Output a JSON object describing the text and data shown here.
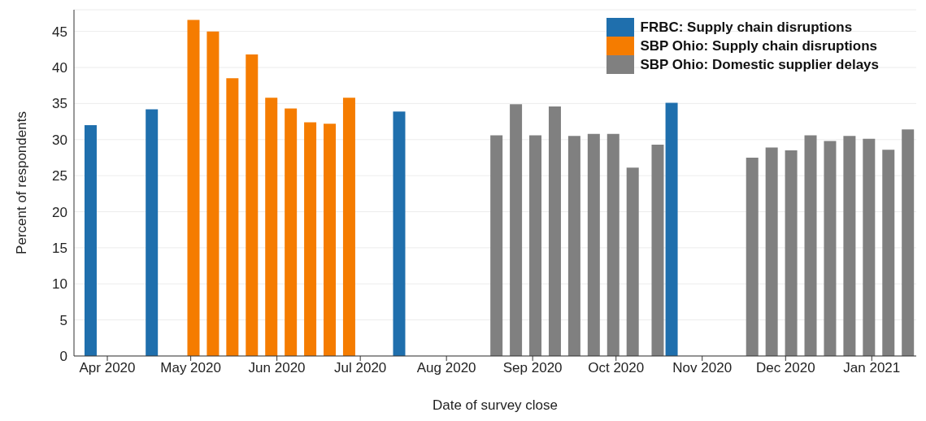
{
  "chart_data": {
    "type": "bar",
    "xlabel": "Date of survey close",
    "ylabel": "Percent of respondents",
    "xlim": [
      "2020-03-20",
      "2021-01-17"
    ],
    "ylim": [
      0,
      48
    ],
    "xticks": [
      {
        "value": "2020-04-01",
        "label": "Apr 2020"
      },
      {
        "value": "2020-05-01",
        "label": "May 2020"
      },
      {
        "value": "2020-06-01",
        "label": "Jun 2020"
      },
      {
        "value": "2020-07-01",
        "label": "Jul 2020"
      },
      {
        "value": "2020-08-01",
        "label": "Aug 2020"
      },
      {
        "value": "2020-09-01",
        "label": "Sep 2020"
      },
      {
        "value": "2020-10-01",
        "label": "Oct 2020"
      },
      {
        "value": "2020-11-01",
        "label": "Nov 2020"
      },
      {
        "value": "2020-12-01",
        "label": "Dec 2020"
      },
      {
        "value": "2021-01-01",
        "label": "Jan 2021"
      }
    ],
    "yticks": [
      0,
      5,
      10,
      15,
      20,
      25,
      30,
      35,
      40,
      45
    ],
    "grid": "y",
    "legend": "top right",
    "series": [
      {
        "name": "FRBC: Supply chain disruptions",
        "color": "#1f6fad",
        "x": [
          "2020-03-26",
          "2020-04-17",
          "2020-07-15",
          "2020-10-21"
        ],
        "values": [
          32.0,
          34.2,
          33.9,
          35.1
        ]
      },
      {
        "name": "SBP Ohio: Supply chain disruptions",
        "color": "#f57c00",
        "x": [
          "2020-05-02",
          "2020-05-09",
          "2020-05-16",
          "2020-05-23",
          "2020-05-30",
          "2020-06-06",
          "2020-06-13",
          "2020-06-20",
          "2020-06-27"
        ],
        "values": [
          46.6,
          45.0,
          38.5,
          41.8,
          35.8,
          34.3,
          32.4,
          32.2,
          35.8
        ]
      },
      {
        "name": "SBP Ohio: Domestic supplier delays",
        "color": "#808080",
        "x": [
          "2020-08-19",
          "2020-08-26",
          "2020-09-02",
          "2020-09-09",
          "2020-09-16",
          "2020-09-23",
          "2020-09-30",
          "2020-10-07",
          "2020-10-16",
          "2020-11-19",
          "2020-11-26",
          "2020-12-03",
          "2020-12-10",
          "2020-12-17",
          "2020-12-24",
          "2020-12-31",
          "2021-01-07",
          "2021-01-14"
        ],
        "values": [
          30.6,
          34.9,
          30.6,
          34.6,
          30.5,
          30.8,
          30.8,
          26.1,
          29.3,
          27.5,
          28.9,
          28.5,
          30.6,
          29.8,
          30.5,
          30.1,
          28.6,
          31.4
        ]
      }
    ]
  }
}
